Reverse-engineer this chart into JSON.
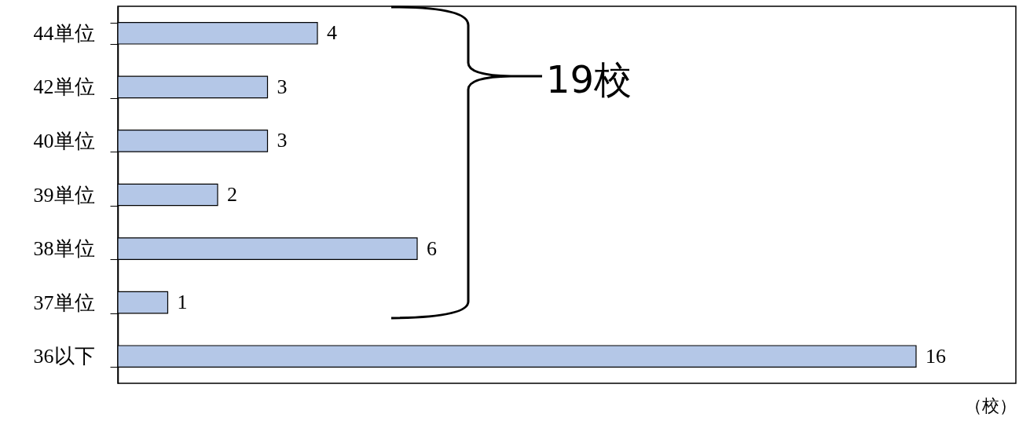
{
  "chart_data": {
    "type": "bar",
    "orientation": "horizontal",
    "categories": [
      "44単位",
      "42単位",
      "40単位",
      "39単位",
      "38単位",
      "37単位",
      "36以下"
    ],
    "values": [
      4,
      3,
      3,
      2,
      6,
      1,
      16
    ],
    "color": "#b4c7e7",
    "data_labels": true,
    "xlim": [
      0,
      18
    ],
    "tick_labels": "y",
    "xlabel": "（校）",
    "annotations": [
      "19校"
    ]
  }
}
